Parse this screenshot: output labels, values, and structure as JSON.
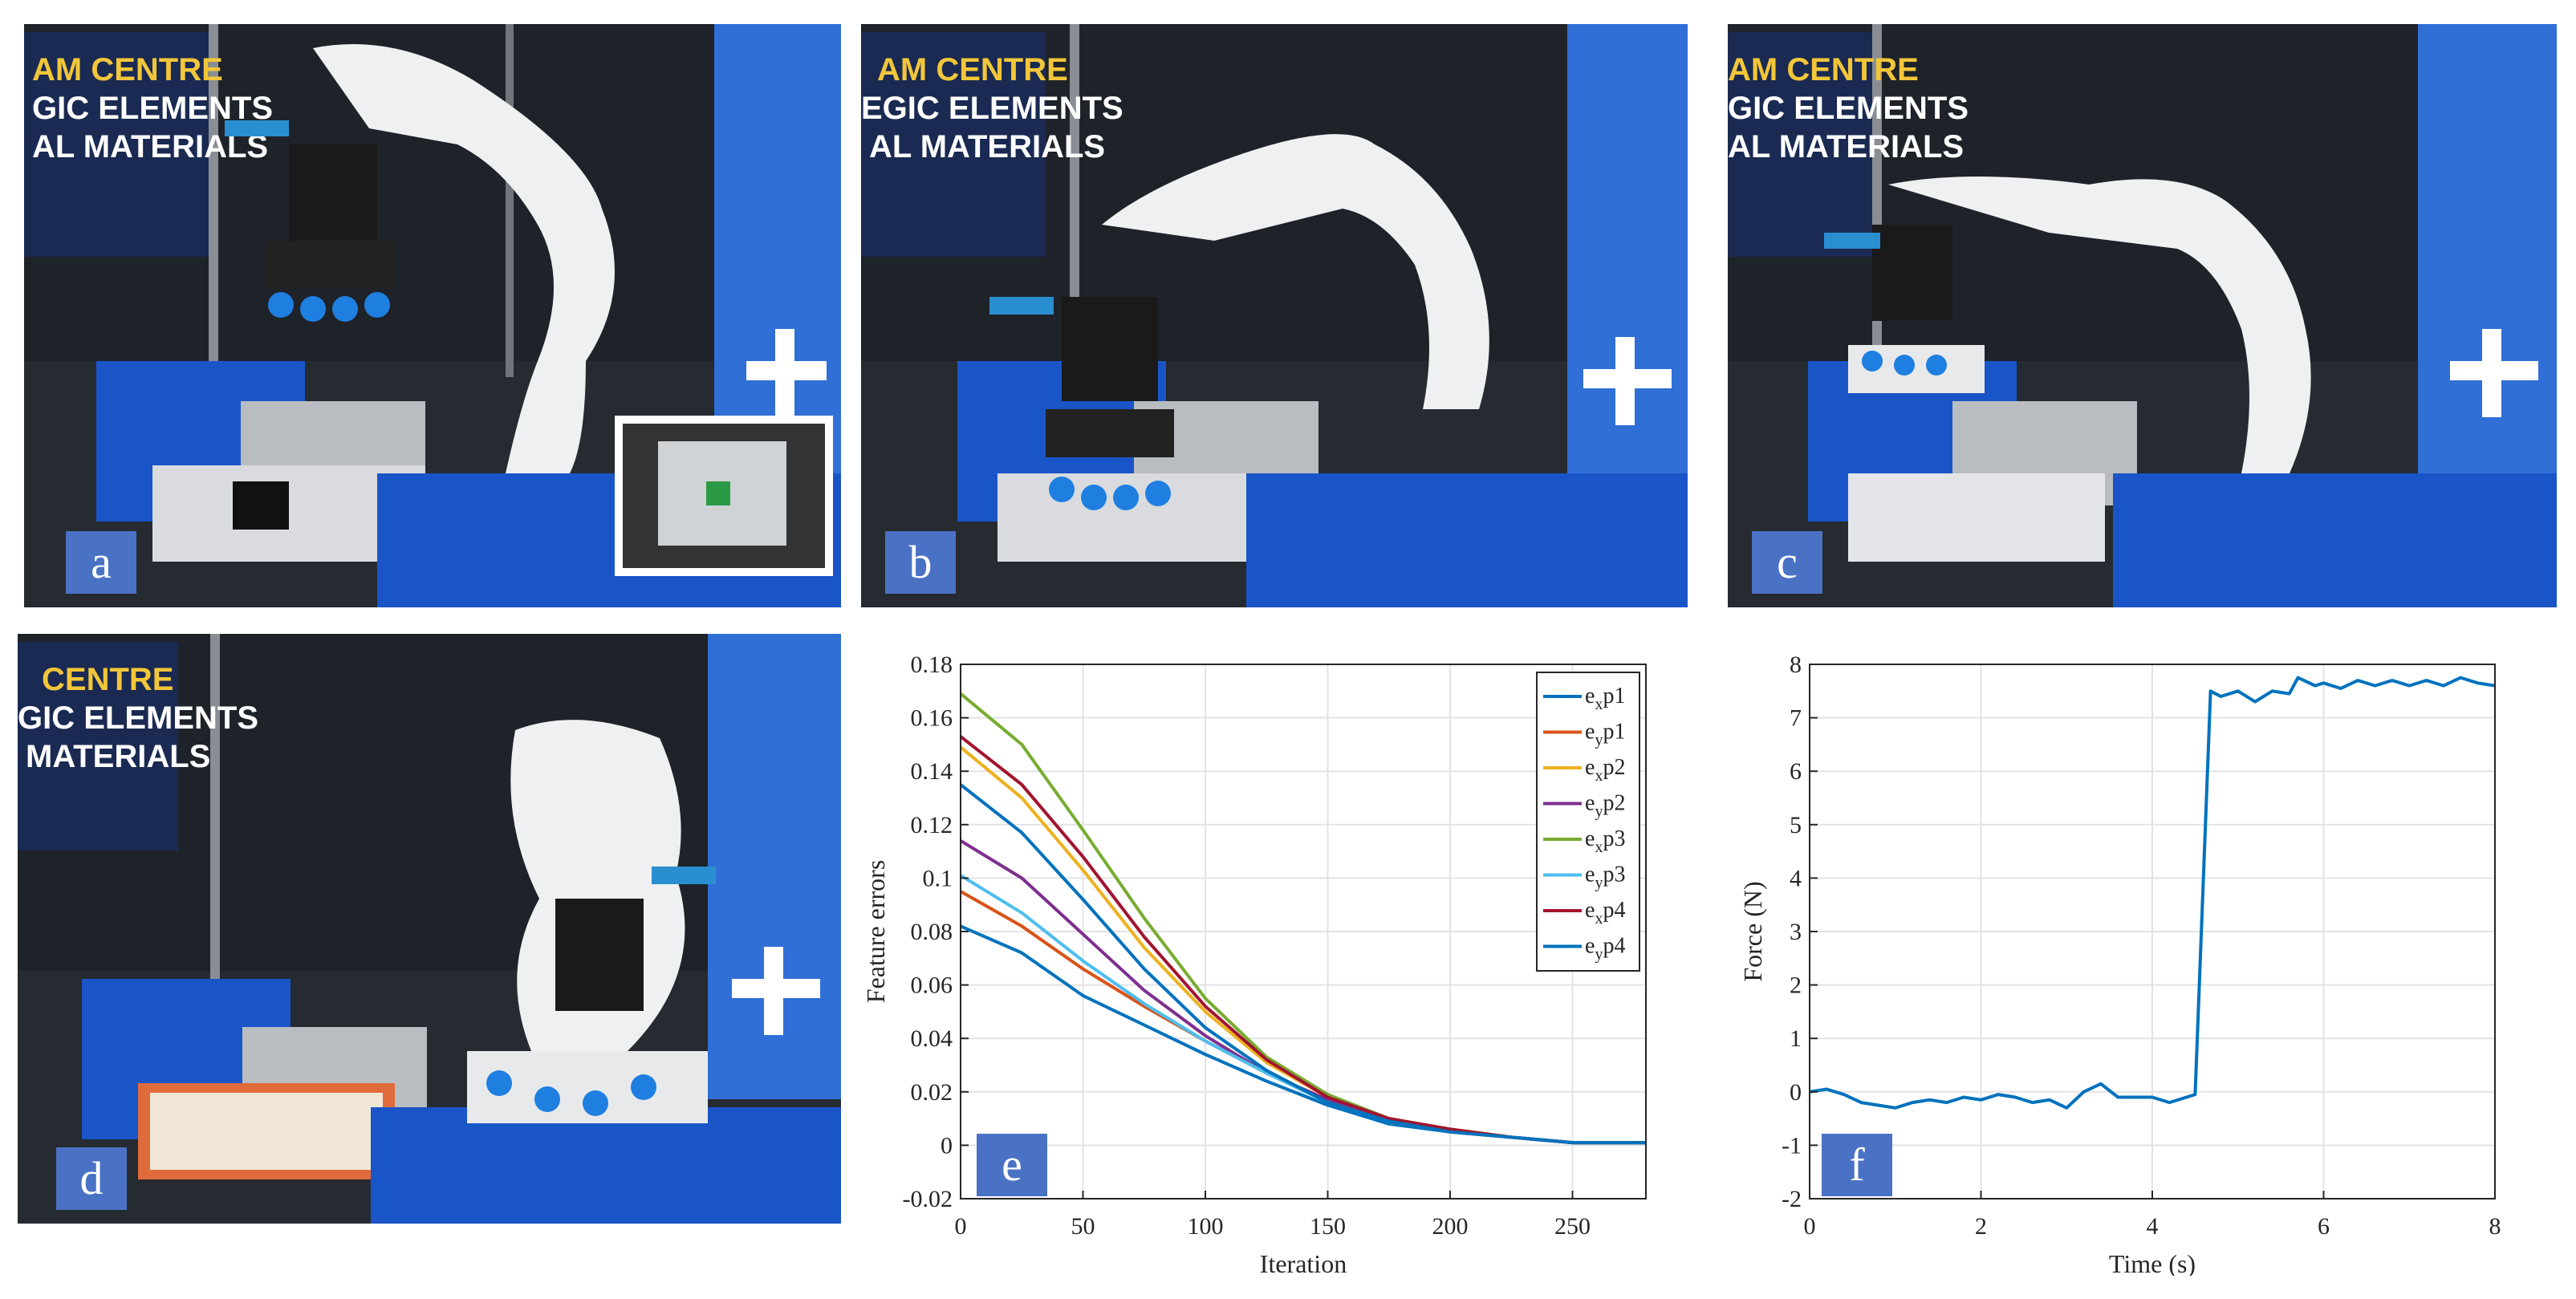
{
  "panels": {
    "a": {
      "label": "a",
      "banner_lines": [
        "AM CENTRE",
        "GIC ELEMENTS",
        "AL MATERIALS"
      ]
    },
    "b": {
      "label": "b",
      "banner_lines": [
        "AM CENTRE",
        "EGIC ELEMENTS",
        "AL MATERIALS"
      ]
    },
    "c": {
      "label": "c",
      "banner_lines": [
        "AM CENTRE",
        "GIC ELEMENTS",
        "AL MATERIALS"
      ]
    },
    "d": {
      "label": "d",
      "banner_lines": [
        "CENTRE",
        "GIC ELEMENTS",
        "MATERIALS"
      ]
    },
    "e": {
      "label": "e"
    },
    "f": {
      "label": "f"
    }
  },
  "colors": {
    "label_box": "#4a72c4",
    "robot": "#eef0f2",
    "bin": "#1a55c8"
  },
  "chart_data": [
    {
      "type": "line",
      "xlabel": "Iteration",
      "ylabel": "Feature errors",
      "xlim": [
        0,
        280
      ],
      "ylim": [
        -0.02,
        0.18
      ],
      "xticks": [
        0,
        50,
        100,
        150,
        200,
        250
      ],
      "yticks": [
        -0.02,
        0,
        0.02,
        0.04,
        0.06,
        0.08,
        0.1,
        0.12,
        0.14,
        0.16,
        0.18
      ],
      "grid": true,
      "legend_position": "top-right",
      "series": [
        {
          "name": "exp1",
          "main": "e",
          "sub": "x",
          "tail": "p1",
          "color": "#0072BD",
          "points": [
            [
              0,
              0.082
            ],
            [
              25,
              0.072
            ],
            [
              50,
              0.056
            ],
            [
              75,
              0.045
            ],
            [
              100,
              0.034
            ],
            [
              125,
              0.024
            ],
            [
              150,
              0.015
            ],
            [
              175,
              0.008
            ],
            [
              200,
              0.005
            ],
            [
              225,
              0.003
            ],
            [
              250,
              0.001
            ],
            [
              280,
              0.001
            ]
          ]
        },
        {
          "name": "eyp1",
          "main": "e",
          "sub": "y",
          "tail": "p1",
          "color": "#D95319",
          "points": [
            [
              0,
              0.095
            ],
            [
              25,
              0.082
            ],
            [
              50,
              0.066
            ],
            [
              75,
              0.052
            ],
            [
              100,
              0.039
            ],
            [
              125,
              0.027
            ],
            [
              150,
              0.017
            ],
            [
              175,
              0.009
            ],
            [
              200,
              0.005
            ],
            [
              225,
              0.003
            ],
            [
              250,
              0.001
            ],
            [
              280,
              0.001
            ]
          ]
        },
        {
          "name": "exp2",
          "main": "e",
          "sub": "x",
          "tail": "p2",
          "color": "#EDB120",
          "points": [
            [
              0,
              0.149
            ],
            [
              25,
              0.13
            ],
            [
              50,
              0.103
            ],
            [
              75,
              0.074
            ],
            [
              100,
              0.05
            ],
            [
              125,
              0.031
            ],
            [
              150,
              0.018
            ],
            [
              175,
              0.01
            ],
            [
              200,
              0.006
            ],
            [
              225,
              0.003
            ],
            [
              250,
              0.001
            ],
            [
              280,
              0.001
            ]
          ]
        },
        {
          "name": "eyp2",
          "main": "e",
          "sub": "y",
          "tail": "p2",
          "color": "#7E2F8E",
          "points": [
            [
              0,
              0.114
            ],
            [
              25,
              0.1
            ],
            [
              50,
              0.079
            ],
            [
              75,
              0.058
            ],
            [
              100,
              0.041
            ],
            [
              125,
              0.027
            ],
            [
              150,
              0.017
            ],
            [
              175,
              0.009
            ],
            [
              200,
              0.005
            ],
            [
              225,
              0.003
            ],
            [
              250,
              0.001
            ],
            [
              280,
              0.001
            ]
          ]
        },
        {
          "name": "exp3",
          "main": "e",
          "sub": "x",
          "tail": "p3",
          "color": "#77AC30",
          "points": [
            [
              0,
              0.169
            ],
            [
              25,
              0.15
            ],
            [
              50,
              0.118
            ],
            [
              75,
              0.085
            ],
            [
              100,
              0.055
            ],
            [
              125,
              0.033
            ],
            [
              150,
              0.019
            ],
            [
              175,
              0.01
            ],
            [
              200,
              0.006
            ],
            [
              225,
              0.003
            ],
            [
              250,
              0.001
            ],
            [
              280,
              0.001
            ]
          ]
        },
        {
          "name": "eyp3",
          "main": "e",
          "sub": "y",
          "tail": "p3",
          "color": "#4DBEEE",
          "points": [
            [
              0,
              0.101
            ],
            [
              25,
              0.087
            ],
            [
              50,
              0.069
            ],
            [
              75,
              0.053
            ],
            [
              100,
              0.039
            ],
            [
              125,
              0.027
            ],
            [
              150,
              0.016
            ],
            [
              175,
              0.009
            ],
            [
              200,
              0.005
            ],
            [
              225,
              0.003
            ],
            [
              250,
              0.001
            ],
            [
              280,
              0.001
            ]
          ]
        },
        {
          "name": "exp4",
          "main": "e",
          "sub": "x",
          "tail": "p4",
          "color": "#A2142F",
          "points": [
            [
              0,
              0.153
            ],
            [
              25,
              0.135
            ],
            [
              50,
              0.108
            ],
            [
              75,
              0.078
            ],
            [
              100,
              0.052
            ],
            [
              125,
              0.032
            ],
            [
              150,
              0.018
            ],
            [
              175,
              0.01
            ],
            [
              200,
              0.006
            ],
            [
              225,
              0.003
            ],
            [
              250,
              0.001
            ],
            [
              280,
              0.001
            ]
          ]
        },
        {
          "name": "eyp4",
          "main": "e",
          "sub": "y",
          "tail": "p4",
          "color": "#0072BD",
          "points": [
            [
              0,
              0.135
            ],
            [
              25,
              0.117
            ],
            [
              50,
              0.092
            ],
            [
              75,
              0.066
            ],
            [
              100,
              0.044
            ],
            [
              125,
              0.028
            ],
            [
              150,
              0.016
            ],
            [
              175,
              0.009
            ],
            [
              200,
              0.005
            ],
            [
              225,
              0.003
            ],
            [
              250,
              0.001
            ],
            [
              280,
              0.001
            ]
          ]
        }
      ]
    },
    {
      "type": "line",
      "xlabel": "Time (s)",
      "ylabel": "Force (N)",
      "xlim": [
        0,
        8
      ],
      "ylim": [
        -2,
        8
      ],
      "xticks": [
        0,
        2,
        4,
        6,
        8
      ],
      "yticks": [
        -2,
        -1,
        0,
        1,
        2,
        3,
        4,
        5,
        6,
        7,
        8
      ],
      "grid": true,
      "series": [
        {
          "name": "",
          "color": "#0072BD",
          "points": [
            [
              0,
              0
            ],
            [
              0.2,
              0.05
            ],
            [
              0.4,
              -0.05
            ],
            [
              0.6,
              -0.2
            ],
            [
              0.8,
              -0.25
            ],
            [
              1.0,
              -0.3
            ],
            [
              1.2,
              -0.2
            ],
            [
              1.4,
              -0.15
            ],
            [
              1.6,
              -0.2
            ],
            [
              1.8,
              -0.1
            ],
            [
              2.0,
              -0.15
            ],
            [
              2.2,
              -0.05
            ],
            [
              2.4,
              -0.1
            ],
            [
              2.6,
              -0.2
            ],
            [
              2.8,
              -0.15
            ],
            [
              3.0,
              -0.3
            ],
            [
              3.2,
              0.0
            ],
            [
              3.4,
              0.15
            ],
            [
              3.6,
              -0.1
            ],
            [
              3.8,
              -0.1
            ],
            [
              4.0,
              -0.1
            ],
            [
              4.2,
              -0.2
            ],
            [
              4.4,
              -0.1
            ],
            [
              4.5,
              -0.05
            ],
            [
              4.68,
              7.5
            ],
            [
              4.8,
              7.4
            ],
            [
              5.0,
              7.5
            ],
            [
              5.2,
              7.3
            ],
            [
              5.4,
              7.5
            ],
            [
              5.6,
              7.45
            ],
            [
              5.7,
              7.75
            ],
            [
              5.9,
              7.6
            ],
            [
              6.0,
              7.65
            ],
            [
              6.2,
              7.55
            ],
            [
              6.4,
              7.7
            ],
            [
              6.6,
              7.6
            ],
            [
              6.8,
              7.7
            ],
            [
              7.0,
              7.6
            ],
            [
              7.2,
              7.7
            ],
            [
              7.4,
              7.6
            ],
            [
              7.6,
              7.75
            ],
            [
              7.8,
              7.65
            ],
            [
              8.0,
              7.6
            ]
          ]
        }
      ]
    }
  ]
}
